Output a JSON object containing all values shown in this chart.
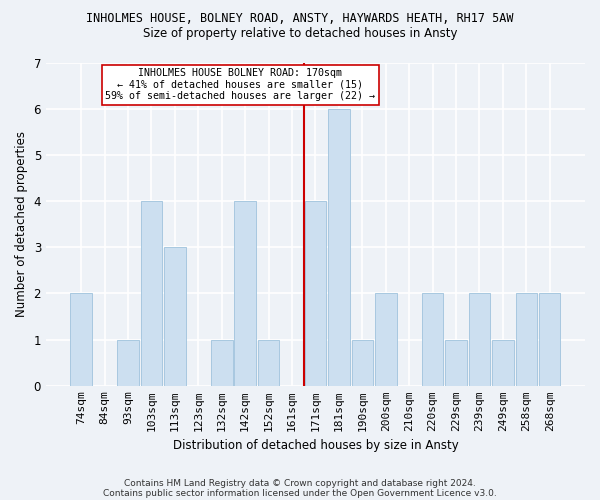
{
  "title1": "INHOLMES HOUSE, BOLNEY ROAD, ANSTY, HAYWARDS HEATH, RH17 5AW",
  "title2": "Size of property relative to detached houses in Ansty",
  "xlabel": "Distribution of detached houses by size in Ansty",
  "ylabel": "Number of detached properties",
  "categories": [
    "74sqm",
    "84sqm",
    "93sqm",
    "103sqm",
    "113sqm",
    "123sqm",
    "132sqm",
    "142sqm",
    "152sqm",
    "161sqm",
    "171sqm",
    "181sqm",
    "190sqm",
    "200sqm",
    "210sqm",
    "220sqm",
    "229sqm",
    "239sqm",
    "249sqm",
    "258sqm",
    "268sqm"
  ],
  "values": [
    2,
    0,
    1,
    4,
    3,
    0,
    1,
    4,
    1,
    0,
    4,
    6,
    1,
    2,
    0,
    2,
    1,
    2,
    1,
    2,
    2
  ],
  "bar_color": "#ccdff0",
  "bar_edge_color": "#a8c8e0",
  "vline_index": 10,
  "vline_color": "#cc0000",
  "annotation_title": "INHOLMES HOUSE BOLNEY ROAD: 170sqm",
  "annotation_line1": "← 41% of detached houses are smaller (15)",
  "annotation_line2": "59% of semi-detached houses are larger (22) →",
  "annotation_box_color": "#ffffff",
  "annotation_box_edge": "#cc0000",
  "ylim": [
    0,
    7
  ],
  "yticks": [
    0,
    1,
    2,
    3,
    4,
    5,
    6,
    7
  ],
  "footnote1": "Contains HM Land Registry data © Crown copyright and database right 2024.",
  "footnote2": "Contains public sector information licensed under the Open Government Licence v3.0.",
  "bg_color": "#eef2f7",
  "grid_color": "#ffffff"
}
